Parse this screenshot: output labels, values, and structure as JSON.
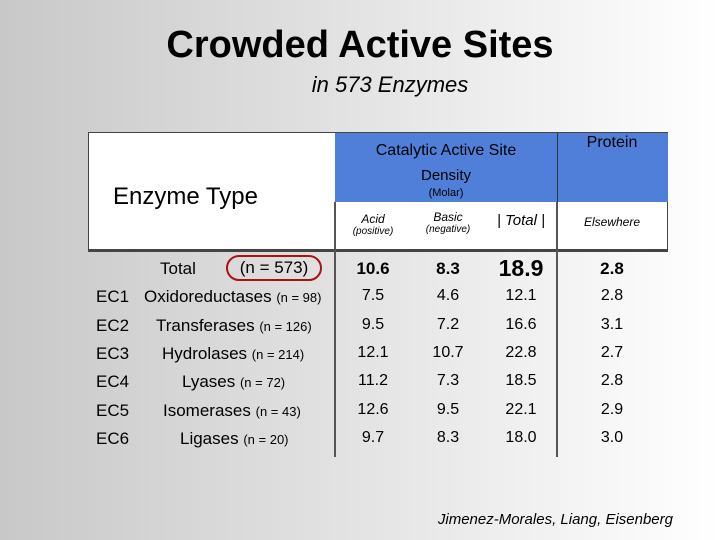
{
  "title": "Crowded Active Sites",
  "subtitle": "in 573 Enzymes",
  "header": {
    "enzyme_type": "Enzyme Type",
    "catalytic_title": "Catalytic Active Site",
    "catalytic_density": "Density",
    "catalytic_units": "(Molar)",
    "protein_title": "Protein",
    "acid_label": "Acid",
    "acid_sub": "(positive)",
    "basic_label": "Basic",
    "basic_sub": "(negative)",
    "total_label": "| Total |",
    "elsewhere_label": "Elsewhere"
  },
  "total_row": {
    "label": "Total",
    "n": "(n = 573)",
    "acid": "10.6",
    "basic": "8.3",
    "total": "18.9",
    "elsewhere": "2.8"
  },
  "rows": [
    {
      "ec": "EC1",
      "name": "Oxidoreductases",
      "n": "(n = 98)",
      "acid": "7.5",
      "basic": "4.6",
      "total": "12.1",
      "elsewhere": "2.8"
    },
    {
      "ec": "EC2",
      "name": "Transferases",
      "n": "(n = 126)",
      "acid": "9.5",
      "basic": "7.2",
      "total": "16.6",
      "elsewhere": "3.1"
    },
    {
      "ec": "EC3",
      "name": "Hydrolases",
      "n": "(n = 214)",
      "acid": "12.1",
      "basic": "10.7",
      "total": "22.8",
      "elsewhere": "2.7"
    },
    {
      "ec": "EC4",
      "name": "Lyases",
      "n": "(n = 72)",
      "acid": "11.2",
      "basic": "7.3",
      "total": "18.5",
      "elsewhere": "2.8"
    },
    {
      "ec": "EC5",
      "name": "Isomerases",
      "n": "(n = 43)",
      "acid": "12.6",
      "basic": "9.5",
      "total": "22.1",
      "elsewhere": "2.9"
    },
    {
      "ec": "EC6",
      "name": "Ligases",
      "n": "(n = 20)",
      "acid": "9.7",
      "basic": "8.3",
      "total": "18.0",
      "elsewhere": "3.0"
    }
  ],
  "credit": "Jimenez-Morales, Liang, Eisenberg",
  "colors": {
    "header_blue": "#4f7fd8",
    "oval_red": "#a11111"
  }
}
